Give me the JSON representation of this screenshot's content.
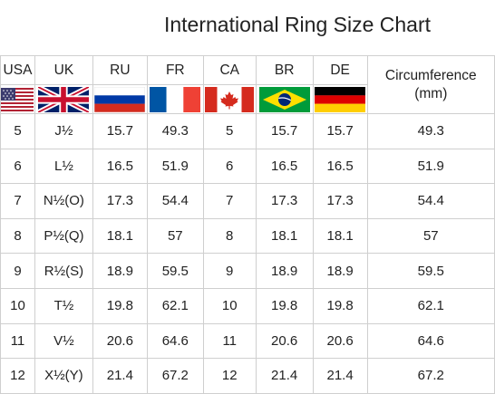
{
  "title": "International Ring Size Chart",
  "columns": [
    "USA",
    "UK",
    "RU",
    "FR",
    "CA",
    "BR",
    "DE",
    "Circumference (mm)"
  ],
  "circumference_header": {
    "line1": "Circumference",
    "line2": "(mm)"
  },
  "flags": [
    "usa-flag-icon",
    "uk-flag-icon",
    "russia-flag-icon",
    "france-flag-icon",
    "canada-flag-icon",
    "brazil-flag-icon",
    "germany-flag-icon"
  ],
  "rows": [
    [
      "5",
      "J½",
      "15.7",
      "49.3",
      "5",
      "15.7",
      "15.7",
      "49.3"
    ],
    [
      "6",
      "L½",
      "16.5",
      "51.9",
      "6",
      "16.5",
      "16.5",
      "51.9"
    ],
    [
      "7",
      "N½(O)",
      "17.3",
      "54.4",
      "7",
      "17.3",
      "17.3",
      "54.4"
    ],
    [
      "8",
      "P½(Q)",
      "18.1",
      "57",
      "8",
      "18.1",
      "18.1",
      "57"
    ],
    [
      "9",
      "R½(S)",
      "18.9",
      "59.5",
      "9",
      "18.9",
      "18.9",
      "59.5"
    ],
    [
      "10",
      "T½",
      "19.8",
      "62.1",
      "10",
      "19.8",
      "19.8",
      "62.1"
    ],
    [
      "11",
      "V½",
      "20.6",
      "64.6",
      "11",
      "20.6",
      "20.6",
      "64.6"
    ],
    [
      "12",
      "X½(Y)",
      "21.4",
      "67.2",
      "12",
      "21.4",
      "21.4",
      "67.2"
    ]
  ]
}
